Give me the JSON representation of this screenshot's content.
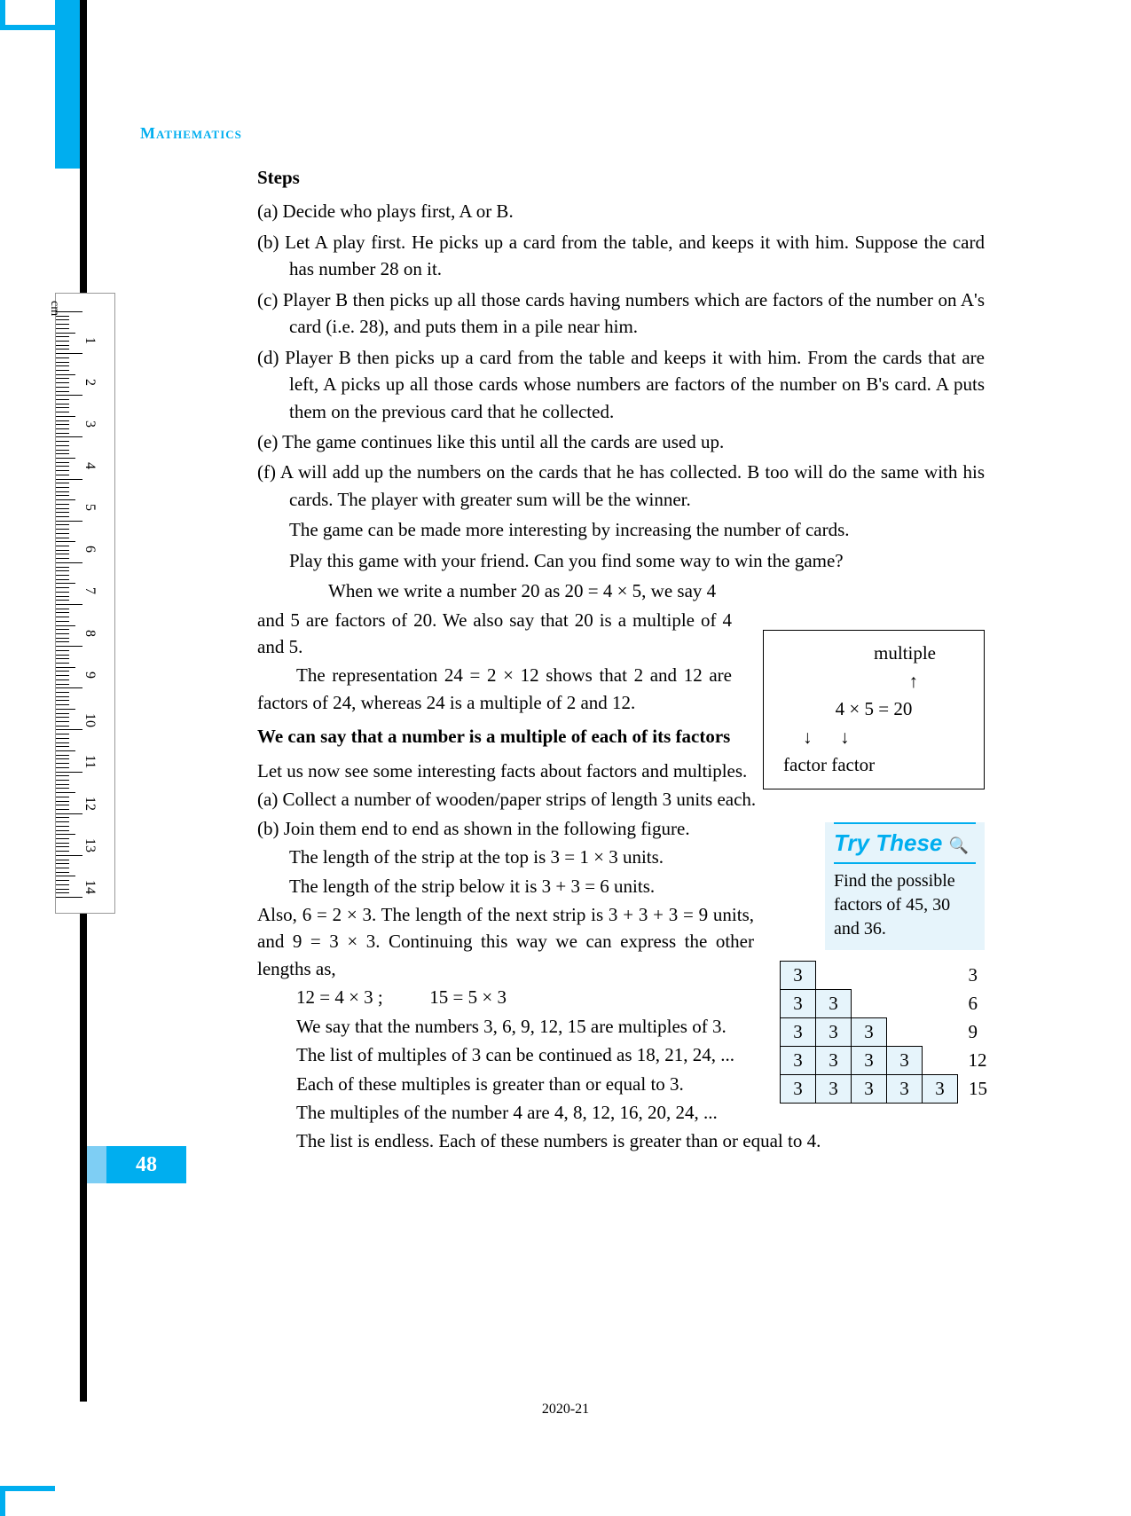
{
  "header": {
    "subject": "Mathematics"
  },
  "stepsTitle": "Steps",
  "steps": {
    "a": "(a) Decide who plays first, A or B.",
    "b": "(b) Let A play first. He picks up a card from the table, and keeps it with him. Suppose the card has number 28 on it.",
    "c": "(c) Player B then picks up all those cards having numbers which are factors of the number on A's card  (i.e. 28), and puts them in a pile near him.",
    "d": "(d) Player B then picks up a card from the table and keeps it with him. From the cards that are left, A picks up all those cards whose numbers are factors of the number on B's card. A  puts them on the previous card that he collected.",
    "e": "(e) The game continues like this until all the cards are used up.",
    "f": "(f) A will add up the numbers on the cards that he has collected. B too will do the same with his cards. The player with greater sum will be the winner.",
    "fExtra1": "The game can be made more interesting by increasing the number of cards.",
    "fExtra2": "Play this game with your friend. Can you find some way to win the game?"
  },
  "body": {
    "p1a": "When we write a number 20 as 20 = 4 × 5, we say 4",
    "p1b": "and 5 are factors of 20. We also say that 20 is a multiple of 4 and 5.",
    "p2": "The representation 24 = 2 × 12 shows that 2 and 12 are factors of 24, whereas 24 is a multiple of 2 and 12.",
    "bold": "We can say that a number is a multiple of each of its factors",
    "p3": "Let us now see some interesting facts about factors and multiples.",
    "p4": "(a) Collect a number of wooden/paper strips of length 3 units each.",
    "p5": "(b) Join them end to end as shown in the following figure.",
    "p6": "The length of the strip at the top is 3 = 1 × 3 units.",
    "p7": "The length of the strip below it is 3 + 3 = 6 units.",
    "p8": "Also, 6 = 2 × 3. The length of the next strip is 3 + 3 + 3 = 9 units, and  9 = 3 × 3. Continuing this way we can express the other lengths as,",
    "eq": "12 = 4 × 3 ;          15 = 5 × 3",
    "p9": "We say that the numbers 3, 6, 9, 12, 15 are multiples of 3.",
    "p10": "The list of multiples of 3 can be continued as 18, 21, 24, ...",
    "p11": "Each of these multiples is greater than or equal to 3.",
    "p12": "The multiples of the number 4 are 4, 8, 12, 16, 20, 24, ...",
    "p13": "The list is endless. Each of these numbers is greater than or equal to 4."
  },
  "multipleBox": {
    "line1": "multiple",
    "arrow1": "↑",
    "line2": "4  ×  5 = 20",
    "arrow2": "↓      ↓",
    "line3": "factor  factor"
  },
  "tryThese": {
    "title": "Try  These",
    "mag": "🔍",
    "text": "Find the possible factors of 45, 30 and 36."
  },
  "strips": {
    "cell": "3",
    "sums": [
      "3",
      "6",
      "9",
      "12",
      "15"
    ],
    "rows": [
      1,
      2,
      3,
      4,
      5
    ]
  },
  "ruler": {
    "unit": "cm",
    "numbers": [
      "1",
      "2",
      "3",
      "4",
      "5",
      "6",
      "7",
      "8",
      "9",
      "10",
      "11",
      "12",
      "13",
      "14"
    ]
  },
  "pageNumber": "48",
  "footerYear": "2020-21",
  "colors": {
    "cyan": "#00aeef",
    "lightCyan": "#e6f4fb",
    "black": "#000000"
  }
}
